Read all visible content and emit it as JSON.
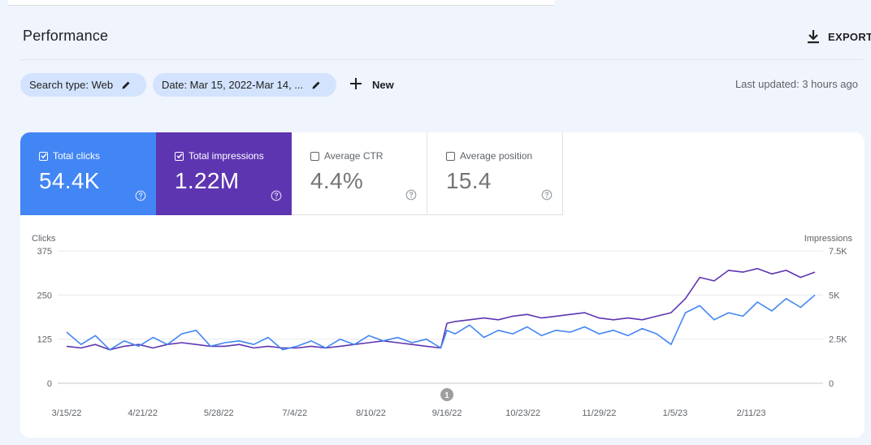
{
  "header": {
    "title": "Performance",
    "export_label": "EXPORT",
    "export_icon": "download-icon"
  },
  "filters": {
    "search_type": "Search type: Web",
    "date": "Date: Mar 15, 2022-Mar 14, ...",
    "edit_icon": "pencil-icon",
    "new_label": "New",
    "new_icon": "plus-icon",
    "last_updated": "Last updated: 3 hours ago"
  },
  "metrics": [
    {
      "label": "Total clicks",
      "value": "54.4K",
      "checked": true,
      "color": "#4285f4"
    },
    {
      "label": "Total impressions",
      "value": "1.22M",
      "checked": true,
      "color": "#5e35b1"
    },
    {
      "label": "Average CTR",
      "value": "4.4%",
      "checked": false
    },
    {
      "label": "Average position",
      "value": "15.4",
      "checked": false
    }
  ],
  "chart_data": {
    "type": "line",
    "left_axis_title": "Clicks",
    "right_axis_title": "Impressions",
    "left_ticks": [
      "375",
      "250",
      "125",
      "0"
    ],
    "right_ticks": [
      "7.5K",
      "5K",
      "2.5K",
      "0"
    ],
    "ylim_left": [
      0,
      375
    ],
    "ylim_right": [
      0,
      7500
    ],
    "grid": true,
    "x_ticks": [
      "3/15/22",
      "4/21/22",
      "5/28/22",
      "7/4/22",
      "8/10/22",
      "9/16/22",
      "10/23/22",
      "11/29/22",
      "1/5/23",
      "2/11/23"
    ],
    "annotation": {
      "label": "1",
      "at": "9/16/22"
    },
    "series": [
      {
        "name": "Total clicks",
        "axis": "left",
        "color": "#4285f4",
        "x": [
          "3/15/22",
          "3/22/22",
          "3/29/22",
          "4/5/22",
          "4/12/22",
          "4/19/22",
          "4/26/22",
          "5/3/22",
          "5/10/22",
          "5/17/22",
          "5/24/22",
          "5/31/22",
          "6/7/22",
          "6/14/22",
          "6/21/22",
          "6/28/22",
          "7/5/22",
          "7/12/22",
          "7/19/22",
          "7/26/22",
          "8/2/22",
          "8/9/22",
          "8/16/22",
          "8/23/22",
          "8/30/22",
          "9/6/22",
          "9/13/22",
          "9/16/22",
          "9/20/22",
          "9/27/22",
          "10/4/22",
          "10/11/22",
          "10/18/22",
          "10/25/22",
          "11/1/22",
          "11/8/22",
          "11/15/22",
          "11/22/22",
          "11/29/22",
          "12/6/22",
          "12/13/22",
          "12/20/22",
          "12/27/22",
          "1/3/23",
          "1/10/23",
          "1/17/23",
          "1/24/23",
          "1/31/23",
          "2/7/23",
          "2/14/23",
          "2/21/23",
          "2/28/23",
          "3/7/23",
          "3/14/23"
        ],
        "values": [
          145,
          110,
          135,
          95,
          120,
          105,
          130,
          110,
          140,
          150,
          105,
          115,
          120,
          110,
          130,
          95,
          105,
          120,
          100,
          125,
          110,
          135,
          120,
          130,
          115,
          125,
          100,
          150,
          140,
          165,
          130,
          150,
          140,
          160,
          135,
          150,
          145,
          160,
          140,
          150,
          135,
          155,
          140,
          110,
          200,
          220,
          180,
          200,
          190,
          230,
          205,
          240,
          215,
          250
        ]
      },
      {
        "name": "Total impressions",
        "axis": "right",
        "color": "#5e35b1",
        "x": [
          "3/15/22",
          "3/22/22",
          "3/29/22",
          "4/5/22",
          "4/12/22",
          "4/19/22",
          "4/26/22",
          "5/3/22",
          "5/10/22",
          "5/17/22",
          "5/24/22",
          "5/31/22",
          "6/7/22",
          "6/14/22",
          "6/21/22",
          "6/28/22",
          "7/5/22",
          "7/12/22",
          "7/19/22",
          "7/26/22",
          "8/2/22",
          "8/9/22",
          "8/16/22",
          "8/23/22",
          "8/30/22",
          "9/6/22",
          "9/13/22",
          "9/16/22",
          "9/20/22",
          "9/27/22",
          "10/4/22",
          "10/11/22",
          "10/18/22",
          "10/25/22",
          "11/1/22",
          "11/8/22",
          "11/15/22",
          "11/22/22",
          "11/29/22",
          "12/6/22",
          "12/13/22",
          "12/20/22",
          "12/27/22",
          "1/3/23",
          "1/10/23",
          "1/17/23",
          "1/24/23",
          "1/31/23",
          "2/7/23",
          "2/14/23",
          "2/21/23",
          "2/28/23",
          "3/7/23",
          "3/14/23"
        ],
        "values": [
          2100,
          2000,
          2200,
          1900,
          2100,
          2200,
          2000,
          2200,
          2300,
          2200,
          2100,
          2100,
          2200,
          2000,
          2100,
          2000,
          2000,
          2100,
          2000,
          2100,
          2200,
          2300,
          2400,
          2300,
          2200,
          2100,
          2000,
          3400,
          3500,
          3600,
          3700,
          3600,
          3800,
          3900,
          3700,
          3800,
          3900,
          4000,
          3700,
          3600,
          3700,
          3600,
          3800,
          4000,
          4800,
          6000,
          5800,
          6400,
          6300,
          6500,
          6200,
          6400,
          6000,
          6300
        ]
      }
    ]
  }
}
